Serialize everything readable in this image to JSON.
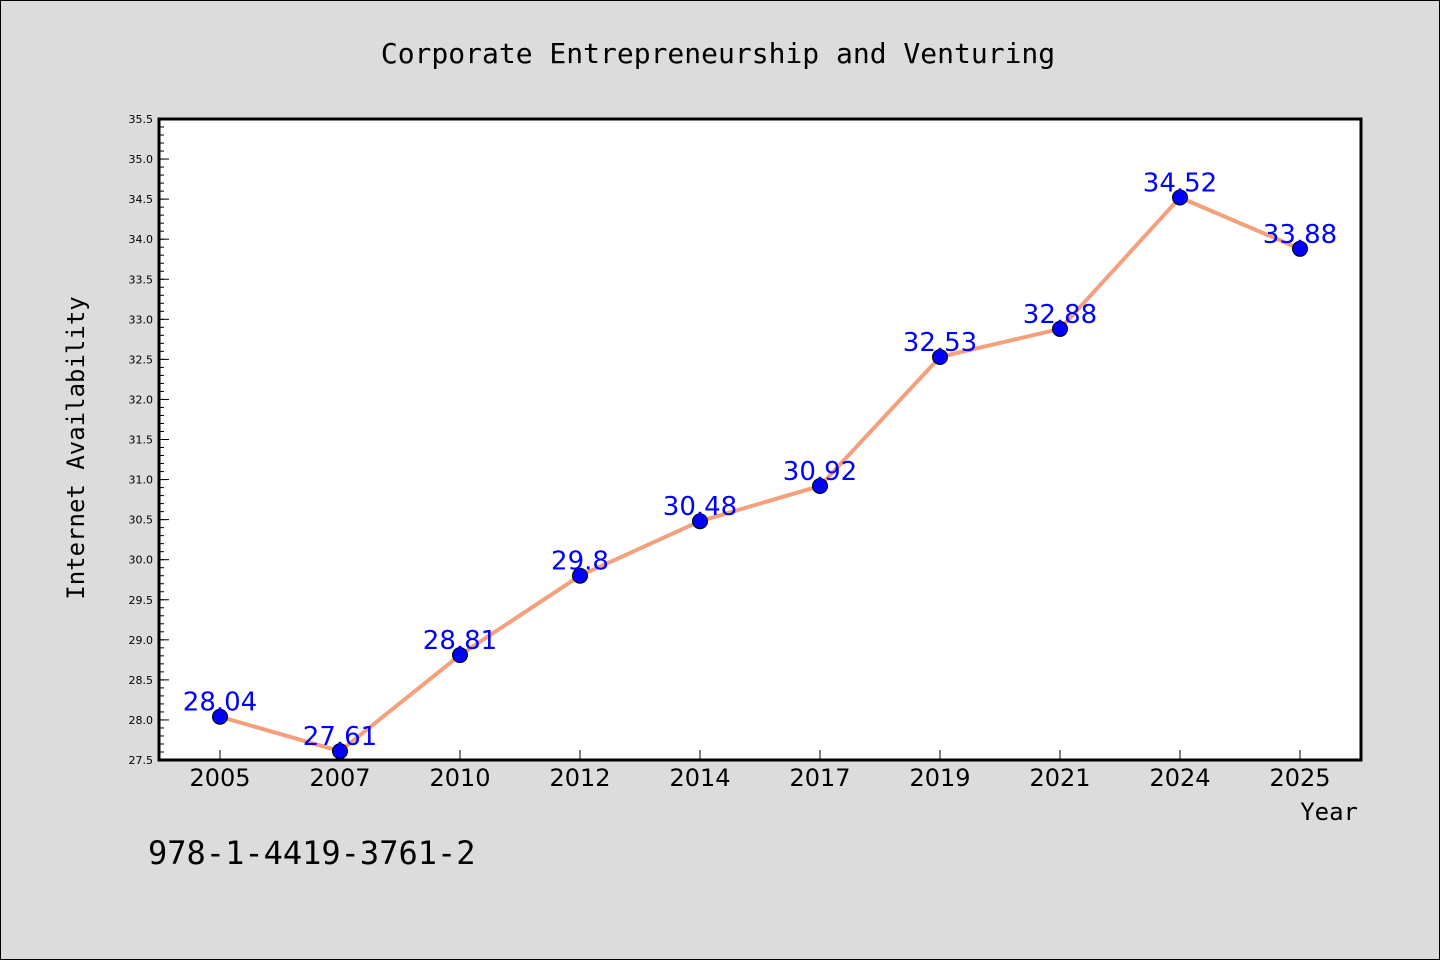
{
  "chart_data": {
    "type": "line",
    "title": "Corporate Entrepreneurship and Venturing",
    "xlabel": "Year",
    "ylabel": "Internet Availability",
    "categories": [
      "2005",
      "2007",
      "2010",
      "2012",
      "2014",
      "2017",
      "2019",
      "2021",
      "2024",
      "2025"
    ],
    "values": [
      28.04,
      27.61,
      28.81,
      29.8,
      30.48,
      30.92,
      32.53,
      32.88,
      34.52,
      33.88
    ],
    "data_labels": [
      "28.04",
      "27.61",
      "28.81",
      "29.8",
      "30.48",
      "30.92",
      "32.53",
      "32.88",
      "34.52",
      "33.88"
    ],
    "ylim": [
      27.5,
      35.5
    ],
    "yticks": [
      "27.5",
      "28.0",
      "28.5",
      "29.0",
      "29.5",
      "30.0",
      "30.5",
      "31.0",
      "31.5",
      "32.0",
      "32.5",
      "33.0",
      "33.5",
      "34.0",
      "34.5",
      "35.0",
      "35.5"
    ],
    "grid": false,
    "line_color": "#f4a07c",
    "marker_color": "#0000ff",
    "label_color": "#0000ff",
    "background_color": "#dcdcdc",
    "plot_background_color": "#ffffff"
  },
  "footer_text": "978-1-4419-3761-2"
}
